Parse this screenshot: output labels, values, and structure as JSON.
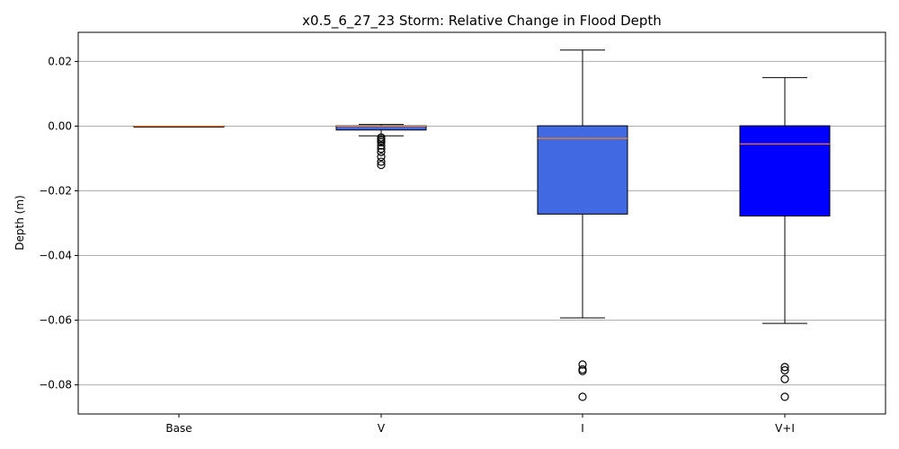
{
  "chart_data": {
    "type": "box",
    "title": "x0.5_6_27_23 Storm: Relative Change in Flood Depth",
    "xlabel": "",
    "ylabel": "Depth (m)",
    "ylim": [
      -0.089,
      0.029
    ],
    "yticks": [
      0.02,
      0.0,
      -0.02,
      -0.04,
      -0.06,
      -0.08
    ],
    "ytick_labels": [
      "0.02",
      "0.00",
      "−0.02",
      "−0.04",
      "−0.06",
      "−0.08"
    ],
    "grid": "y",
    "median_color": "#ff7f0e",
    "categories": [
      "Base",
      "V",
      "I",
      "V+I"
    ],
    "boxes": [
      {
        "label": "Base",
        "color": "#4169e1",
        "whisker_low": 0.0,
        "q1": 0.0,
        "median": 0.0,
        "q3": 0.0,
        "whisker_high": 0.0,
        "outliers": []
      },
      {
        "label": "V",
        "color": "#4169e1",
        "whisker_low": -0.003,
        "q1": -0.0012,
        "median": 0.0,
        "q3": 0.0001,
        "whisker_high": 0.0005,
        "outliers": [
          -0.0035,
          -0.004,
          -0.0045,
          -0.005,
          -0.006,
          -0.007,
          -0.008,
          -0.0095,
          -0.011,
          -0.012
        ]
      },
      {
        "label": "I",
        "color": "#4169e1",
        "whisker_low": -0.0593,
        "q1": -0.0272,
        "median": -0.0038,
        "q3": 0.0001,
        "whisker_high": 0.0235,
        "outliers": [
          -0.0737,
          -0.0752,
          -0.0757,
          -0.0837
        ]
      },
      {
        "label": "V+I",
        "color": "#0000ff",
        "whisker_low": -0.061,
        "q1": -0.0278,
        "median": -0.0055,
        "q3": 0.0001,
        "whisker_high": 0.015,
        "outliers": [
          -0.0745,
          -0.0755,
          -0.0782,
          -0.0837
        ]
      }
    ]
  }
}
